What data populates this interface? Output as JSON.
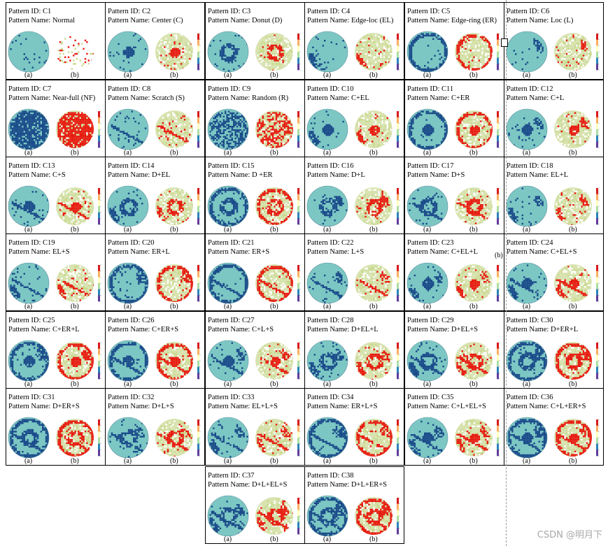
{
  "figure": {
    "id_prefix": "Pattern ID: ",
    "name_prefix": "Pattern Name: ",
    "sub_a": "(a)",
    "sub_b": "(b)",
    "patterns": [
      {
        "id": "C1",
        "name": "Normal"
      },
      {
        "id": "C2",
        "name": "Center (C)"
      },
      {
        "id": "C3",
        "name": "Donut (D)"
      },
      {
        "id": "C4",
        "name": "Edge-loc (EL)"
      },
      {
        "id": "C5",
        "name": "Edge-ring (ER)"
      },
      {
        "id": "C6",
        "name": "Loc (L)"
      },
      {
        "id": "C7",
        "name": "Near-full (NF)"
      },
      {
        "id": "C8",
        "name": "Scratch (S)"
      },
      {
        "id": "C9",
        "name": "Random (R)"
      },
      {
        "id": "C10",
        "name": "C+EL"
      },
      {
        "id": "C11",
        "name": "C+ER"
      },
      {
        "id": "C12",
        "name": "C+L"
      },
      {
        "id": "C13",
        "name": "C+S"
      },
      {
        "id": "C14",
        "name": "D+EL"
      },
      {
        "id": "C15",
        "name": "D +ER"
      },
      {
        "id": "C16",
        "name": "D+L"
      },
      {
        "id": "C17",
        "name": "D+S"
      },
      {
        "id": "C18",
        "name": "EL+L"
      },
      {
        "id": "C19",
        "name": "EL+S"
      },
      {
        "id": "C20",
        "name": "ER+L"
      },
      {
        "id": "C21",
        "name": "ER+S"
      },
      {
        "id": "C22",
        "name": "L+S"
      },
      {
        "id": "C23",
        "name": "C+EL+L"
      },
      {
        "id": "C24",
        "name": "C+EL+S"
      },
      {
        "id": "C25",
        "name": "C+ER+L"
      },
      {
        "id": "C26",
        "name": "C+ER+S"
      },
      {
        "id": "C27",
        "name": "C+L+S"
      },
      {
        "id": "C28",
        "name": "D+EL+L"
      },
      {
        "id": "C29",
        "name": "D+EL+S"
      },
      {
        "id": "C30",
        "name": "D+ER+L"
      },
      {
        "id": "C31",
        "name": "D+ER+S"
      },
      {
        "id": "C32",
        "name": "D+L+S"
      },
      {
        "id": "C33",
        "name": "EL+L+S"
      },
      {
        "id": "C34",
        "name": "ER+L+S"
      },
      {
        "id": "C35",
        "name": "C+L+EL+S"
      },
      {
        "id": "C36",
        "name": "C+L+ER+S"
      },
      {
        "id": "C37",
        "name": "D+L+EL+S"
      },
      {
        "id": "C38",
        "name": "D+L+ER+S"
      }
    ],
    "stray_label": "(b)",
    "colors": {
      "wafer_fill": "#7cc7c3",
      "defect_blue": "#1a4a8a",
      "defect_red": "#e8190f",
      "heat_bg": "#d8e3b0",
      "heat_dot": "#c9d98e",
      "border": "#000000",
      "divider": "#9a9a9a"
    }
  },
  "watermark": "CSDN @明月下"
}
